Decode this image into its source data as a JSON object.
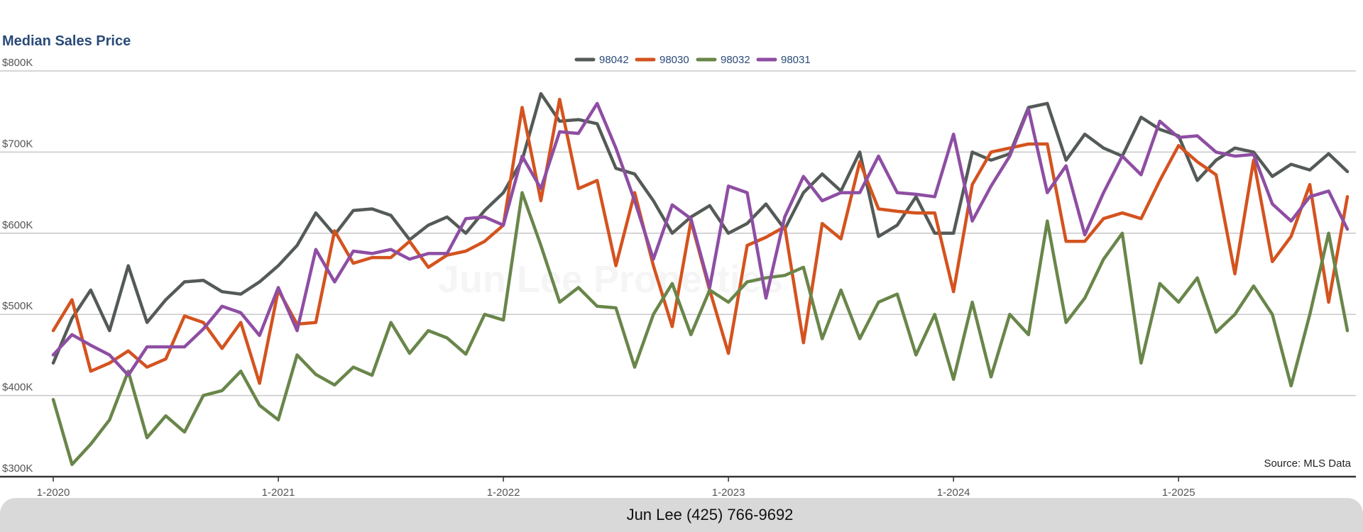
{
  "chart_data": {
    "type": "line",
    "title": "Median Sales Price",
    "ylim": [
      300000,
      800000
    ],
    "y_ticks": [
      300000,
      400000,
      500000,
      600000,
      700000,
      800000
    ],
    "y_tick_labels": [
      "$300K",
      "$400K",
      "$500K",
      "$600K",
      "$700K",
      "$800K"
    ],
    "x_tick_labels": [
      "1-2020",
      "1-2021",
      "1-2022",
      "1-2023",
      "1-2024",
      "1-2025"
    ],
    "x_tick_months": [
      0,
      12,
      24,
      36,
      48,
      60
    ],
    "grid": "horizontal",
    "legend_placement": "top-center",
    "x": [
      "2020-01",
      "2020-02",
      "2020-03",
      "2020-04",
      "2020-05",
      "2020-06",
      "2020-07",
      "2020-08",
      "2020-09",
      "2020-10",
      "2020-11",
      "2020-12",
      "2021-01",
      "2021-02",
      "2021-03",
      "2021-04",
      "2021-05",
      "2021-06",
      "2021-07",
      "2021-08",
      "2021-09",
      "2021-10",
      "2021-11",
      "2021-12",
      "2022-01",
      "2022-02",
      "2022-03",
      "2022-04",
      "2022-05",
      "2022-06",
      "2022-07",
      "2022-08",
      "2022-09",
      "2022-10",
      "2022-11",
      "2022-12",
      "2023-01",
      "2023-02",
      "2023-03",
      "2023-04",
      "2023-05",
      "2023-06",
      "2023-07",
      "2023-08",
      "2023-09",
      "2023-10",
      "2023-11",
      "2023-12",
      "2024-01",
      "2024-02",
      "2024-03",
      "2024-04",
      "2024-05",
      "2024-06",
      "2024-07",
      "2024-08",
      "2024-09",
      "2024-10",
      "2024-11",
      "2024-12",
      "2025-01",
      "2025-02",
      "2025-03",
      "2025-04",
      "2025-05",
      "2025-06",
      "2025-07",
      "2025-08",
      "2025-09",
      "2025-10"
    ],
    "series": [
      {
        "name": "98042",
        "color": "#545b57",
        "values": [
          440000,
          495000,
          530000,
          480000,
          560000,
          490000,
          518000,
          540000,
          542000,
          528000,
          525000,
          540000,
          560000,
          585000,
          625000,
          598000,
          628000,
          630000,
          622000,
          592000,
          610000,
          620000,
          600000,
          628000,
          650000,
          690000,
          772000,
          738000,
          740000,
          735000,
          680000,
          673000,
          640000,
          600000,
          620000,
          634000,
          600000,
          612000,
          636000,
          605000,
          650000,
          673000,
          652000,
          700000,
          596000,
          610000,
          645000,
          600000,
          600000,
          700000,
          690000,
          698000,
          755000,
          760000,
          690000,
          722000,
          705000,
          695000,
          743000,
          728000,
          720000,
          665000,
          690000,
          705000,
          700000,
          670000,
          685000,
          678000,
          698000,
          676000
        ]
      },
      {
        "name": "98030",
        "color": "#d4531f",
        "values": [
          480000,
          518000,
          430000,
          440000,
          455000,
          435000,
          445000,
          498000,
          490000,
          458000,
          490000,
          415000,
          530000,
          488000,
          490000,
          603000,
          563000,
          570000,
          570000,
          590000,
          558000,
          573000,
          578000,
          590000,
          610000,
          755000,
          640000,
          765000,
          655000,
          665000,
          560000,
          650000,
          560000,
          485000,
          615000,
          530000,
          452000,
          585000,
          595000,
          608000,
          465000,
          612000,
          593000,
          688000,
          630000,
          627000,
          625000,
          625000,
          528000,
          660000,
          700000,
          705000,
          710000,
          710000,
          590000,
          590000,
          618000,
          625000,
          618000,
          665000,
          708000,
          688000,
          672000,
          550000,
          690000,
          565000,
          596000,
          660000,
          515000,
          645000
        ]
      },
      {
        "name": "98032",
        "color": "#69864a",
        "values": [
          395000,
          315000,
          340000,
          370000,
          430000,
          348000,
          375000,
          355000,
          400000,
          406000,
          430000,
          388000,
          370000,
          450000,
          426000,
          413000,
          435000,
          425000,
          490000,
          452000,
          480000,
          471000,
          451000,
          500000,
          493000,
          650000,
          585000,
          515000,
          533000,
          510000,
          508000,
          435000,
          500000,
          538000,
          475000,
          530000,
          515000,
          540000,
          545000,
          548000,
          558000,
          470000,
          530000,
          470000,
          515000,
          525000,
          450000,
          500000,
          420000,
          515000,
          423000,
          500000,
          475000,
          615000,
          490000,
          520000,
          568000,
          600000,
          440000,
          538000,
          515000,
          545000,
          478000,
          500000,
          535000,
          500000,
          412000,
          500000,
          600000,
          480000
        ]
      },
      {
        "name": "98031",
        "color": "#8e4ea3",
        "values": [
          450000,
          475000,
          462000,
          450000,
          425000,
          460000,
          460000,
          460000,
          482000,
          510000,
          502000,
          474000,
          533000,
          480000,
          580000,
          540000,
          578000,
          575000,
          580000,
          568000,
          575000,
          575000,
          618000,
          620000,
          610000,
          695000,
          655000,
          725000,
          723000,
          760000,
          705000,
          640000,
          568000,
          635000,
          618000,
          533000,
          658000,
          650000,
          520000,
          620000,
          670000,
          640000,
          650000,
          650000,
          695000,
          650000,
          648000,
          645000,
          722000,
          615000,
          658000,
          695000,
          753000,
          650000,
          683000,
          598000,
          650000,
          695000,
          672000,
          738000,
          718000,
          720000,
          700000,
          695000,
          697000,
          636000,
          615000,
          645000,
          652000,
          605000
        ]
      }
    ]
  },
  "source_note": "Source: MLS Data",
  "watermark": "Jun Lee Properties",
  "footer": {
    "contact": "Jun Lee (425) 766-9692"
  },
  "colors": {
    "title": "#2a4a78",
    "legend_text": "#2a4a78",
    "grid": "#c8c8c8",
    "axis": "#333333"
  }
}
